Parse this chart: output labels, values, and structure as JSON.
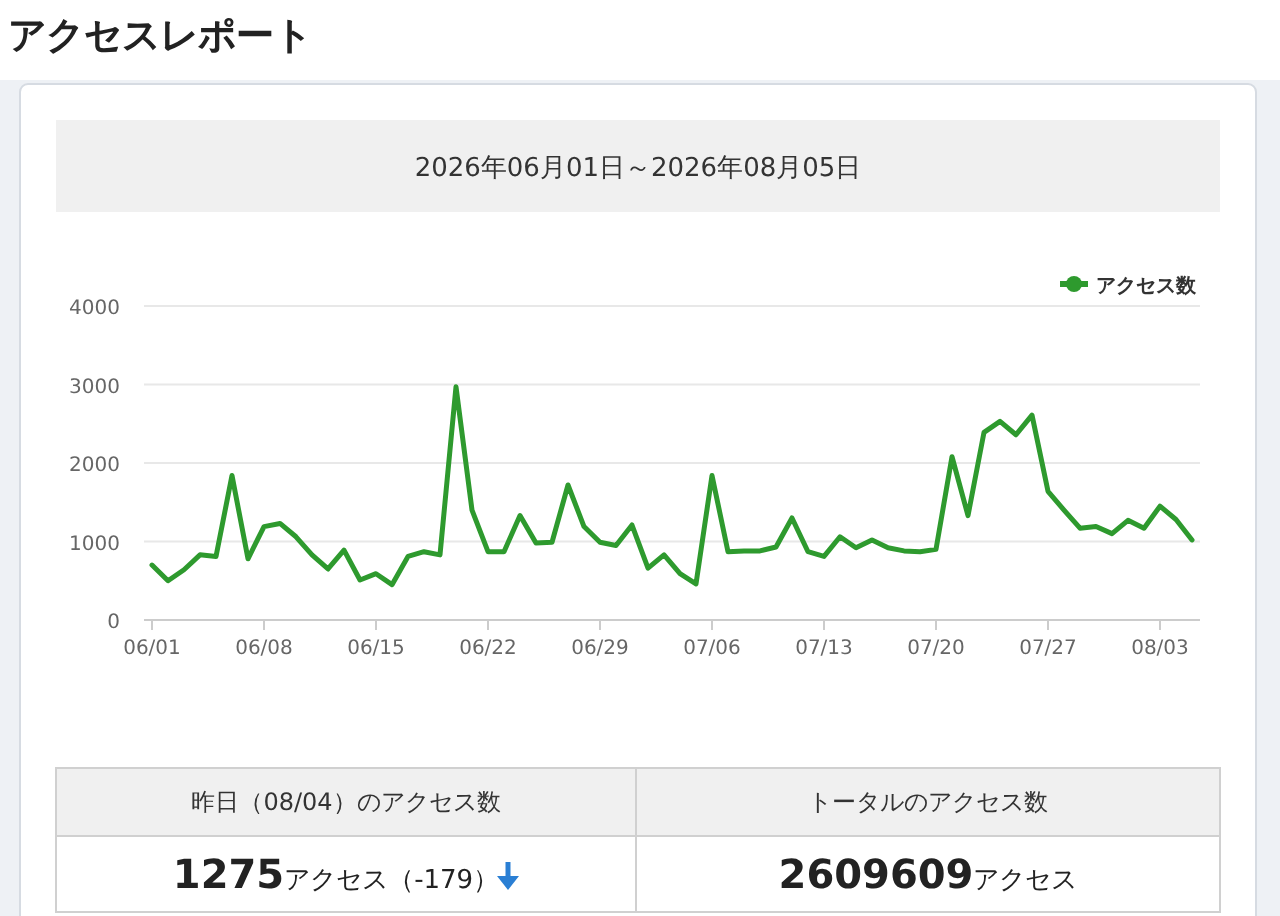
{
  "chart_data": {
    "type": "line",
    "title": "アクセスレポート",
    "subtitle": "2026年06月01日～2026年08月05日",
    "x": [
      "2026-06-01",
      "2026-06-02",
      "2026-06-03",
      "2026-06-04",
      "2026-06-05",
      "2026-06-06",
      "2026-06-07",
      "2026-06-08",
      "2026-06-09",
      "2026-06-10",
      "2026-06-11",
      "2026-06-12",
      "2026-06-13",
      "2026-06-14",
      "2026-06-15",
      "2026-06-16",
      "2026-06-17",
      "2026-06-18",
      "2026-06-19",
      "2026-06-20",
      "2026-06-21",
      "2026-06-22",
      "2026-06-23",
      "2026-06-24",
      "2026-06-25",
      "2026-06-26",
      "2026-06-27",
      "2026-06-28",
      "2026-06-29",
      "2026-06-30",
      "2026-07-01",
      "2026-07-02",
      "2026-07-03",
      "2026-07-04",
      "2026-07-05",
      "2026-07-06",
      "2026-07-07",
      "2026-07-08",
      "2026-07-09",
      "2026-07-10",
      "2026-07-11",
      "2026-07-12",
      "2026-07-13",
      "2026-07-14",
      "2026-07-15",
      "2026-07-16",
      "2026-07-17",
      "2026-07-18",
      "2026-07-19",
      "2026-07-20",
      "2026-07-21",
      "2026-07-22",
      "2026-07-23",
      "2026-07-24",
      "2026-07-25",
      "2026-07-26",
      "2026-07-27",
      "2026-07-28",
      "2026-07-29",
      "2026-07-30",
      "2026-07-31",
      "2026-08-01",
      "2026-08-02",
      "2026-08-03",
      "2026-08-04",
      "2026-08-05"
    ],
    "series": [
      {
        "name": "アクセス数",
        "color": "#2e9a2e",
        "values": [
          700,
          500,
          640,
          830,
          810,
          1840,
          780,
          1190,
          1230,
          1060,
          830,
          650,
          890,
          510,
          590,
          450,
          810,
          870,
          830,
          2970,
          1400,
          870,
          870,
          1330,
          980,
          990,
          1720,
          1190,
          990,
          950,
          1210,
          660,
          830,
          590,
          460,
          1840,
          870,
          880,
          880,
          930,
          1300,
          870,
          810,
          1060,
          920,
          1020,
          920,
          880,
          870,
          900,
          2080,
          1330,
          2390,
          2530,
          2360,
          2610,
          1640,
          1400,
          1170,
          1190,
          1100,
          1270,
          1170,
          1450,
          1280,
          1020
        ]
      }
    ],
    "xlim": [
      "2026-05-31T12:00",
      "2026-08-05T12:00"
    ],
    "xticks": [
      {
        "value": "2026-06-01",
        "label": "06/01"
      },
      {
        "value": "2026-06-08",
        "label": "06/08"
      },
      {
        "value": "2026-06-15",
        "label": "06/15"
      },
      {
        "value": "2026-06-22",
        "label": "06/22"
      },
      {
        "value": "2026-06-29",
        "label": "06/29"
      },
      {
        "value": "2026-07-06",
        "label": "07/06"
      },
      {
        "value": "2026-07-13",
        "label": "07/13"
      },
      {
        "value": "2026-07-20",
        "label": "07/20"
      },
      {
        "value": "2026-07-27",
        "label": "07/27"
      },
      {
        "value": "2026-08-03",
        "label": "08/03"
      }
    ],
    "ylim": [
      0,
      4000
    ],
    "yticks": [
      0,
      1000,
      2000,
      3000,
      4000
    ],
    "grid": "y",
    "legend": "top right",
    "annotations": [
      "昨日（08/04）のアクセス数",
      "1275アクセス（-179）",
      "トータルのアクセス数",
      "2609609アクセス"
    ]
  }
}
